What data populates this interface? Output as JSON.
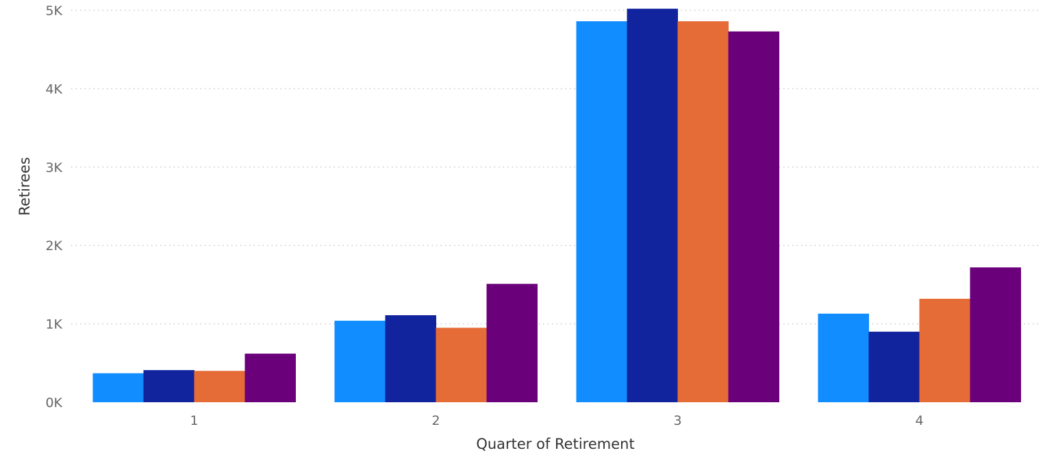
{
  "chart_data": {
    "type": "bar",
    "xlabel": "Quarter of Retirement",
    "ylabel": "Retirees",
    "categories": [
      "1",
      "2",
      "3",
      "4"
    ],
    "ylim": [
      0,
      5000
    ],
    "y_ticks": [
      {
        "value": 0,
        "label": "0K"
      },
      {
        "value": 1000,
        "label": "1K"
      },
      {
        "value": 2000,
        "label": "2K"
      },
      {
        "value": 3000,
        "label": "3K"
      },
      {
        "value": 4000,
        "label": "4K"
      },
      {
        "value": 5000,
        "label": "5K"
      }
    ],
    "grid": true,
    "grid_style": "dotted",
    "legend": "none",
    "series": [
      {
        "color": "#118DFF",
        "values": [
          370,
          1040,
          4860,
          1130
        ]
      },
      {
        "color": "#12239E",
        "values": [
          410,
          1110,
          5020,
          900
        ]
      },
      {
        "color": "#E66C37",
        "values": [
          400,
          950,
          4860,
          1320
        ]
      },
      {
        "color": "#6B007B",
        "values": [
          620,
          1510,
          4730,
          1720
        ]
      }
    ]
  }
}
